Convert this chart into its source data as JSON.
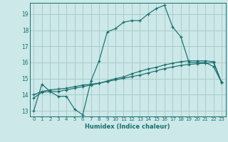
{
  "title": "",
  "xlabel": "Humidex (Indice chaleur)",
  "bg_color": "#cce8e8",
  "grid_color": "#aacccc",
  "line_color": "#1a6e6e",
  "xlim": [
    -0.5,
    23.5
  ],
  "ylim": [
    12.65,
    19.7
  ],
  "yticks": [
    13,
    14,
    15,
    16,
    17,
    18,
    19
  ],
  "xticks": [
    0,
    1,
    2,
    3,
    4,
    5,
    6,
    7,
    8,
    9,
    10,
    11,
    12,
    13,
    14,
    15,
    16,
    17,
    18,
    19,
    20,
    21,
    22,
    23
  ],
  "line1_x": [
    0,
    1,
    2,
    3,
    4,
    5,
    6,
    7,
    8,
    9,
    10,
    11,
    12,
    13,
    14,
    15,
    16,
    17,
    18,
    19,
    20,
    21,
    22,
    23
  ],
  "line1_y": [
    13.0,
    14.65,
    14.2,
    13.9,
    13.9,
    13.1,
    12.75,
    14.85,
    16.1,
    17.9,
    18.1,
    18.5,
    18.6,
    18.6,
    19.0,
    19.35,
    19.55,
    18.2,
    17.6,
    16.0,
    16.0,
    16.0,
    15.75,
    14.75
  ],
  "line2_x": [
    0,
    1,
    2,
    3,
    4,
    5,
    6,
    7,
    8,
    9,
    10,
    11,
    12,
    13,
    14,
    15,
    16,
    17,
    18,
    19,
    20,
    21,
    22,
    23
  ],
  "line2_y": [
    13.8,
    14.15,
    14.2,
    14.2,
    14.3,
    14.4,
    14.5,
    14.6,
    14.7,
    14.85,
    15.0,
    15.1,
    15.3,
    15.45,
    15.6,
    15.7,
    15.85,
    15.95,
    16.05,
    16.1,
    16.1,
    16.1,
    16.05,
    14.75
  ],
  "line3_x": [
    0,
    1,
    2,
    3,
    4,
    5,
    6,
    7,
    8,
    9,
    10,
    11,
    12,
    13,
    14,
    15,
    16,
    17,
    18,
    19,
    20,
    21,
    22,
    23
  ],
  "line3_y": [
    14.0,
    14.2,
    14.3,
    14.35,
    14.4,
    14.5,
    14.6,
    14.65,
    14.72,
    14.82,
    14.92,
    15.02,
    15.12,
    15.22,
    15.35,
    15.48,
    15.62,
    15.72,
    15.82,
    15.88,
    15.92,
    15.95,
    16.0,
    14.75
  ]
}
